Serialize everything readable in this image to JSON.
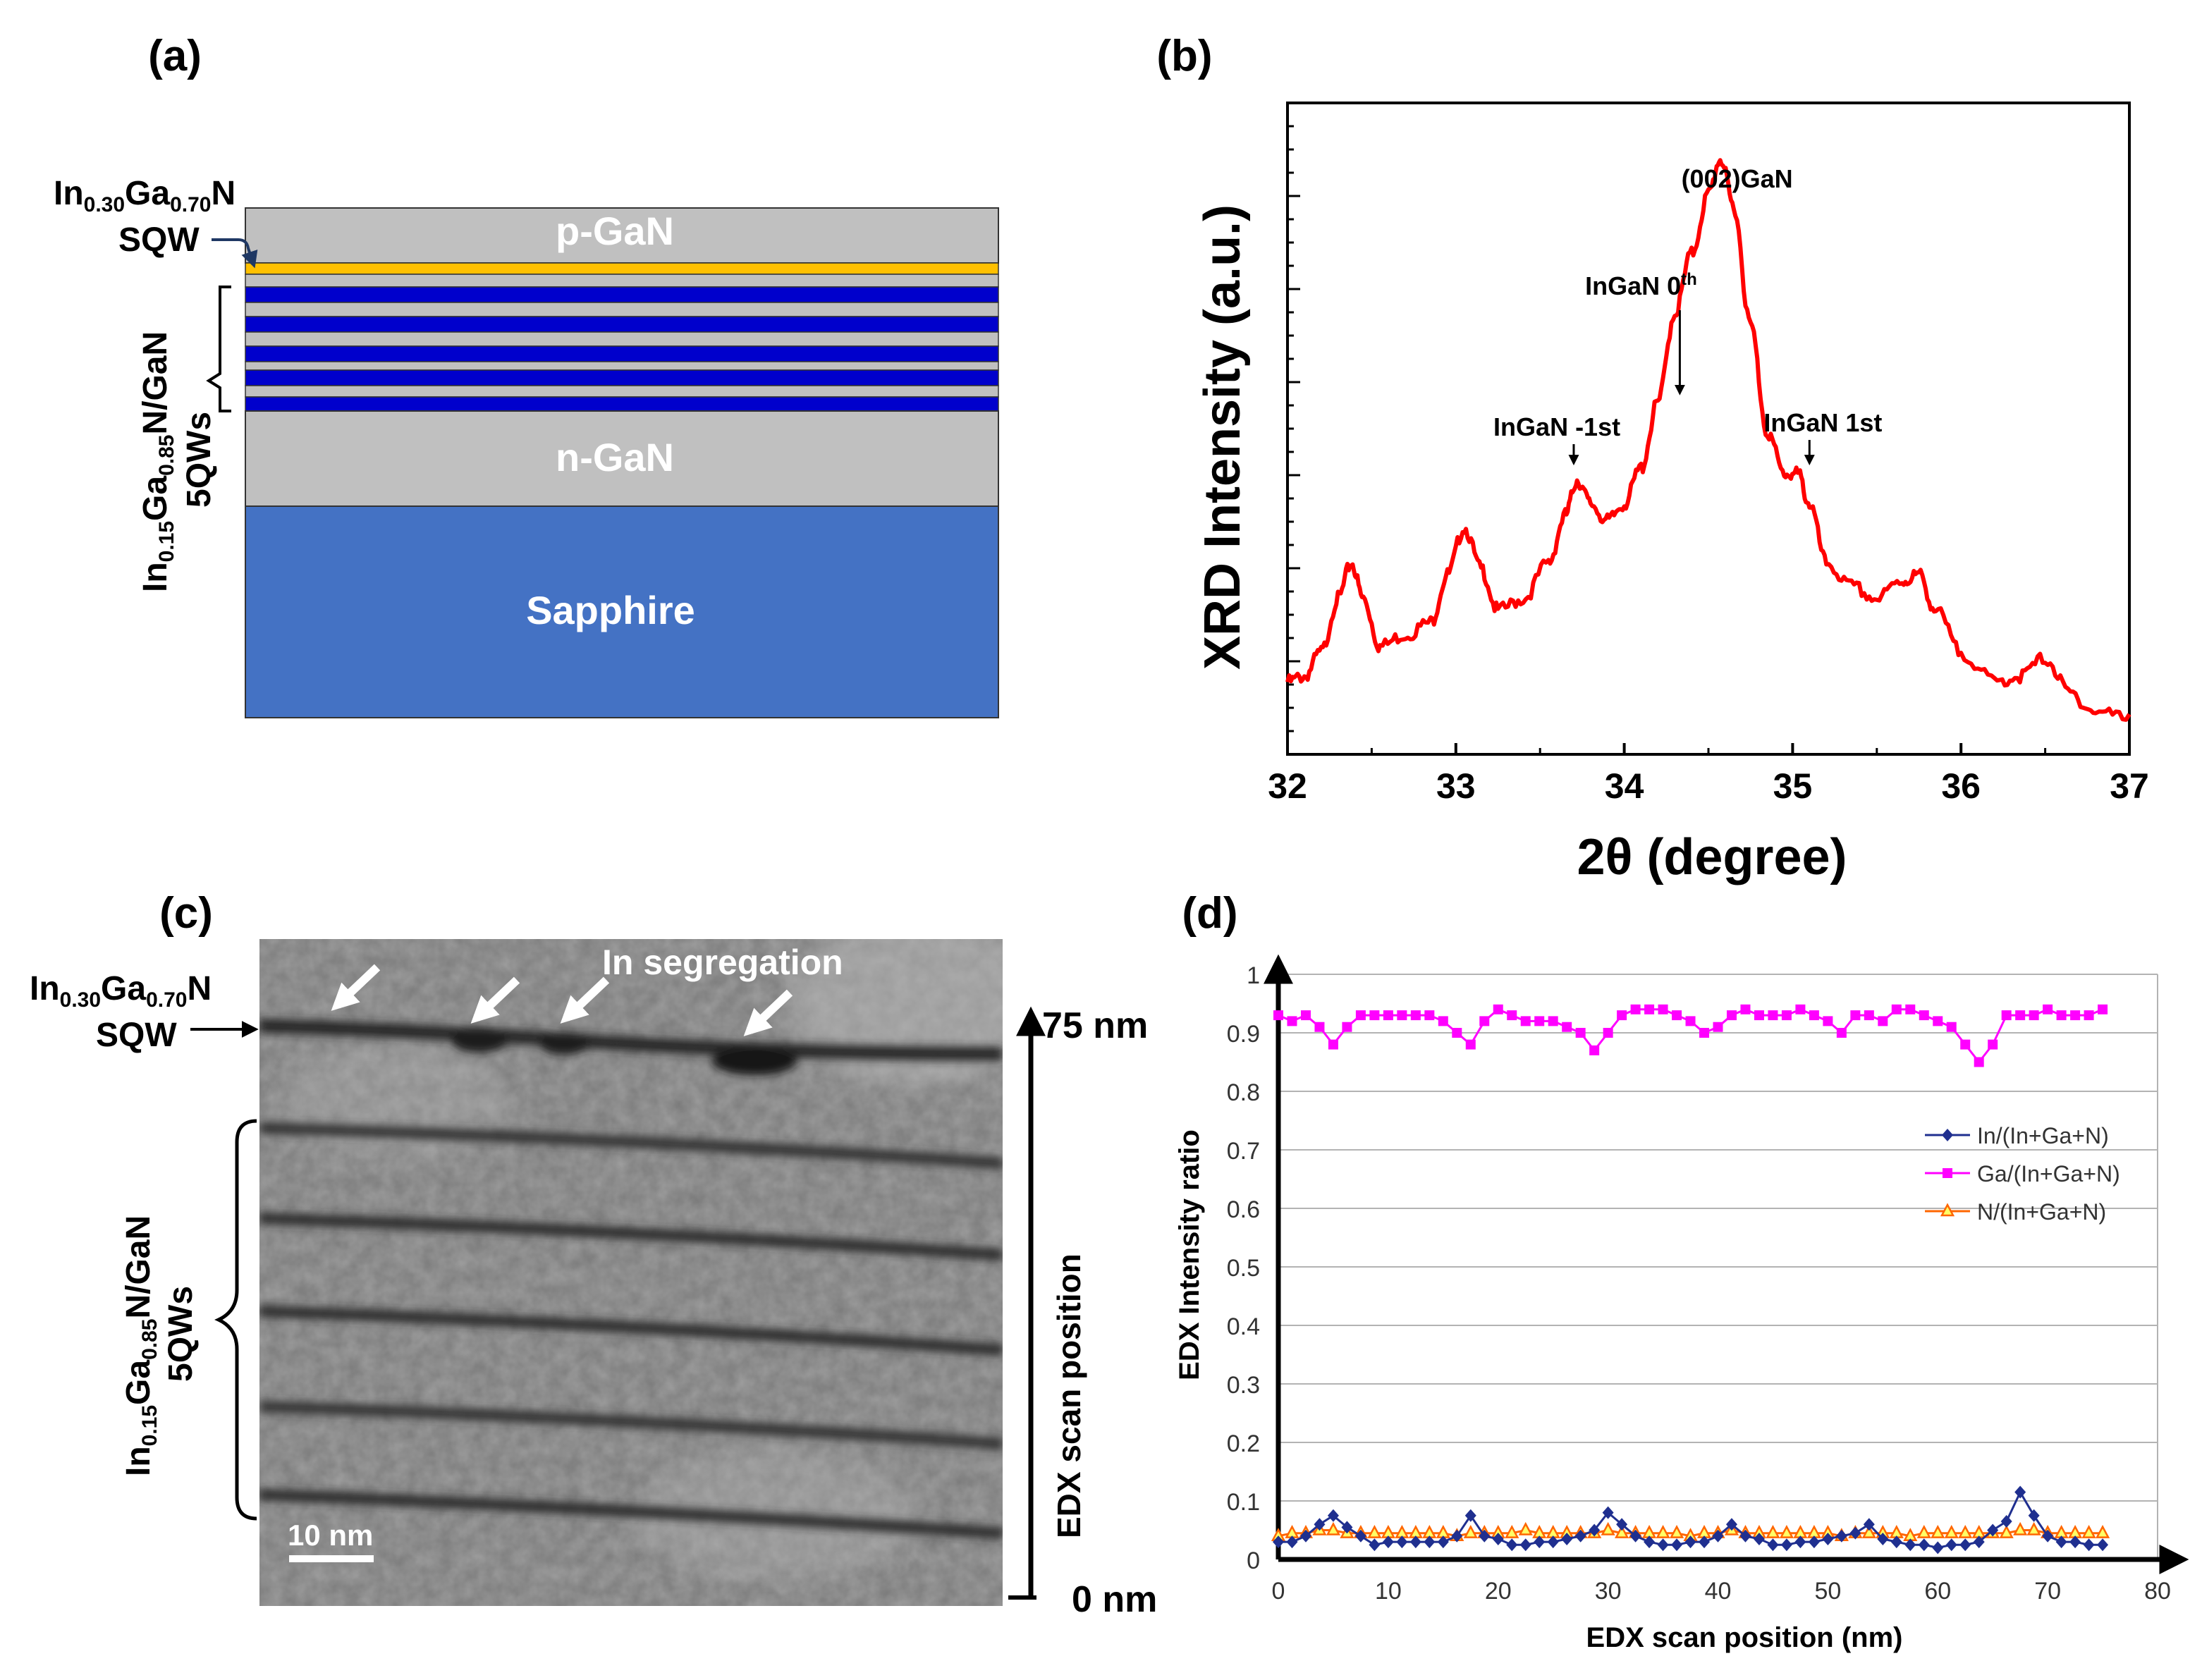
{
  "panels": {
    "a": "(a)",
    "b": "(b)",
    "c": "(c)",
    "d": "(d)"
  },
  "colors": {
    "gan": "#c0c0c0",
    "sqw": "#ffc000",
    "qw": "#0000cc",
    "sapphire": "#4472c4",
    "xrd_line": "#ff0000",
    "in_series": "#1f2f8f",
    "ga_series": "#ff00ff",
    "n_series": "#ff6600"
  },
  "panel_a": {
    "sqw_label_pre": "In",
    "sqw_sub1": "0.30",
    "sqw_label_mid": "Ga",
    "sqw_sub2": "0.70",
    "sqw_label_post": "N",
    "sqw_word": "SQW",
    "mqw_pre": "In",
    "mqw_sub1": "0.15",
    "mqw_mid": "Ga",
    "mqw_sub2": "0.85",
    "mqw_post": "N/GaN",
    "mqw_word": "5QWs",
    "p_gan": "p-GaN",
    "n_gan": "n-GaN",
    "sapphire": "Sapphire"
  },
  "panel_b": {
    "ylabel": "XRD Intensity (a.u.)",
    "xlabel": "2θ (degree)",
    "peak_main": "(002)GaN",
    "peak_0_pre": "InGaN 0",
    "peak_0_sup": "th",
    "peak_m1": "InGaN -1st",
    "peak_p1": "InGaN 1st"
  },
  "panel_c": {
    "sqw_label_pre": "In",
    "sqw_sub1": "0.30",
    "sqw_label_mid": "Ga",
    "sqw_sub2": "0.70",
    "sqw_label_post": "N",
    "sqw_word": "SQW",
    "mqw_pre": "In",
    "mqw_sub1": "0.15",
    "mqw_mid": "Ga",
    "mqw_sub2": "0.85",
    "mqw_post": "N/GaN",
    "mqw_word": "5QWs",
    "segregation": "In segregation",
    "scale_bar": "10 nm",
    "scan_top": "75 nm",
    "scan_bottom": "0 nm",
    "scan_label": "EDX scan position"
  },
  "chart_data": [
    {
      "panel": "b",
      "type": "line",
      "title": "",
      "xlabel": "2θ (degree)",
      "ylabel": "XRD Intensity (a.u.)",
      "xlim": [
        32,
        37
      ],
      "x_ticks": [
        "32",
        "33",
        "34",
        "35",
        "36",
        "37"
      ],
      "ylim": [
        0,
        1
      ],
      "y_ticks_labeled": false,
      "series": [
        {
          "name": "XRD",
          "x": [
            32.0,
            32.1,
            32.2,
            32.3,
            32.38,
            32.45,
            32.55,
            32.7,
            32.85,
            32.95,
            33.05,
            33.15,
            33.25,
            33.4,
            33.55,
            33.65,
            33.72,
            33.8,
            33.9,
            34.0,
            34.1,
            34.2,
            34.3,
            34.4,
            34.5,
            34.57,
            34.65,
            34.75,
            34.85,
            34.95,
            35.03,
            35.1,
            35.2,
            35.35,
            35.5,
            35.65,
            35.75,
            35.85,
            36.0,
            36.2,
            36.35,
            36.5,
            36.65,
            36.8,
            37.0
          ],
          "y": [
            0.08,
            0.09,
            0.13,
            0.22,
            0.28,
            0.22,
            0.14,
            0.16,
            0.18,
            0.26,
            0.34,
            0.27,
            0.2,
            0.22,
            0.28,
            0.36,
            0.42,
            0.38,
            0.35,
            0.38,
            0.44,
            0.55,
            0.7,
            0.8,
            0.9,
            0.96,
            0.88,
            0.68,
            0.5,
            0.43,
            0.43,
            0.38,
            0.28,
            0.24,
            0.22,
            0.25,
            0.26,
            0.2,
            0.13,
            0.08,
            0.09,
            0.12,
            0.06,
            0.03,
            0.02
          ]
        }
      ],
      "annotations": [
        {
          "text": "(002)GaN",
          "x": 34.57
        },
        {
          "text": "InGaN 0th",
          "x": 34.33
        },
        {
          "text": "InGaN -1st",
          "x": 33.7
        },
        {
          "text": "InGaN 1st",
          "x": 35.1
        }
      ]
    },
    {
      "panel": "d",
      "type": "line",
      "title": "",
      "xlabel": "EDX scan position (nm)",
      "ylabel": "EDX Intensity ratio",
      "xlim": [
        0,
        80
      ],
      "ylim": [
        0,
        1
      ],
      "x_ticks": [
        "0",
        "10",
        "20",
        "30",
        "40",
        "50",
        "60",
        "70",
        "80"
      ],
      "y_ticks": [
        "0",
        "0.1",
        "0.2",
        "0.3",
        "0.4",
        "0.5",
        "0.6",
        "0.7",
        "0.8",
        "0.9",
        "1"
      ],
      "grid": true,
      "legend_position": "right",
      "x": [
        0,
        1.25,
        2.5,
        3.75,
        5,
        6.25,
        7.5,
        8.75,
        10,
        11.25,
        12.5,
        13.75,
        15,
        16.25,
        17.5,
        18.75,
        20,
        21.25,
        22.5,
        23.75,
        25,
        26.25,
        27.5,
        28.75,
        30,
        31.25,
        32.5,
        33.75,
        35,
        36.25,
        37.5,
        38.75,
        40,
        41.25,
        42.5,
        43.75,
        45,
        46.25,
        47.5,
        48.75,
        50,
        51.25,
        52.5,
        53.75,
        55,
        56.25,
        57.5,
        58.75,
        60,
        61.25,
        62.5,
        63.75,
        65,
        66.25,
        67.5,
        68.75,
        70,
        71.25,
        72.5,
        73.75,
        75
      ],
      "series": [
        {
          "name": "In/(In+Ga+N)",
          "marker": "diamond",
          "values": [
            0.03,
            0.03,
            0.04,
            0.06,
            0.075,
            0.055,
            0.04,
            0.025,
            0.03,
            0.03,
            0.03,
            0.03,
            0.03,
            0.04,
            0.075,
            0.04,
            0.035,
            0.025,
            0.025,
            0.03,
            0.03,
            0.035,
            0.04,
            0.05,
            0.08,
            0.06,
            0.04,
            0.03,
            0.025,
            0.025,
            0.03,
            0.03,
            0.04,
            0.06,
            0.04,
            0.035,
            0.025,
            0.025,
            0.03,
            0.03,
            0.035,
            0.04,
            0.045,
            0.06,
            0.035,
            0.03,
            0.025,
            0.025,
            0.02,
            0.025,
            0.025,
            0.03,
            0.05,
            0.065,
            0.115,
            0.075,
            0.04,
            0.03,
            0.03,
            0.025,
            0.025
          ]
        },
        {
          "name": "Ga/(In+Ga+N)",
          "marker": "square",
          "values": [
            0.93,
            0.92,
            0.93,
            0.91,
            0.88,
            0.91,
            0.93,
            0.93,
            0.93,
            0.93,
            0.93,
            0.93,
            0.92,
            0.9,
            0.88,
            0.92,
            0.94,
            0.93,
            0.92,
            0.92,
            0.92,
            0.91,
            0.9,
            0.87,
            0.9,
            0.93,
            0.94,
            0.94,
            0.94,
            0.93,
            0.92,
            0.9,
            0.91,
            0.93,
            0.94,
            0.93,
            0.93,
            0.93,
            0.94,
            0.93,
            0.92,
            0.9,
            0.93,
            0.93,
            0.92,
            0.94,
            0.94,
            0.93,
            0.92,
            0.91,
            0.88,
            0.85,
            0.88,
            0.93,
            0.93,
            0.93,
            0.94,
            0.93,
            0.93,
            0.93,
            0.94
          ]
        },
        {
          "name": "N/(In+Ga+N)",
          "marker": "triangle",
          "values": [
            0.04,
            0.045,
            0.045,
            0.05,
            0.05,
            0.045,
            0.045,
            0.045,
            0.045,
            0.045,
            0.045,
            0.045,
            0.045,
            0.04,
            0.045,
            0.045,
            0.045,
            0.045,
            0.05,
            0.045,
            0.045,
            0.045,
            0.045,
            0.045,
            0.05,
            0.045,
            0.045,
            0.045,
            0.045,
            0.045,
            0.04,
            0.045,
            0.045,
            0.05,
            0.045,
            0.045,
            0.045,
            0.045,
            0.045,
            0.045,
            0.045,
            0.04,
            0.045,
            0.045,
            0.045,
            0.045,
            0.04,
            0.045,
            0.045,
            0.045,
            0.045,
            0.045,
            0.045,
            0.045,
            0.05,
            0.05,
            0.045,
            0.045,
            0.045,
            0.045,
            0.045
          ]
        }
      ]
    }
  ]
}
